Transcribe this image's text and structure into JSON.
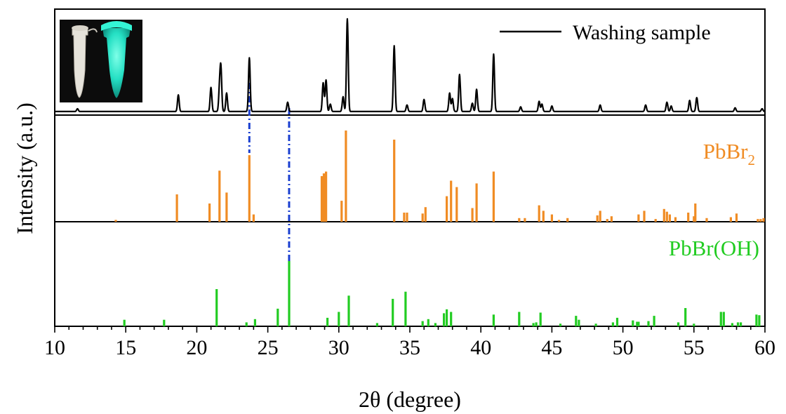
{
  "chart_data": [
    {
      "panel": "top",
      "type": "line",
      "series": [
        {
          "name": "Washing sample",
          "color": "#000000"
        }
      ],
      "peaks": [
        {
          "x": 11.6,
          "y": 3
        },
        {
          "x": 18.7,
          "y": 18
        },
        {
          "x": 21.0,
          "y": 26
        },
        {
          "x": 21.6,
          "y": 24
        },
        {
          "x": 21.7,
          "y": 45
        },
        {
          "x": 22.1,
          "y": 20
        },
        {
          "x": 23.7,
          "y": 58
        },
        {
          "x": 26.4,
          "y": 10
        },
        {
          "x": 28.9,
          "y": 31
        },
        {
          "x": 29.1,
          "y": 34
        },
        {
          "x": 29.4,
          "y": 8
        },
        {
          "x": 30.3,
          "y": 16
        },
        {
          "x": 30.6,
          "y": 100
        },
        {
          "x": 33.9,
          "y": 71
        },
        {
          "x": 34.8,
          "y": 7
        },
        {
          "x": 36.0,
          "y": 13
        },
        {
          "x": 37.8,
          "y": 20
        },
        {
          "x": 38.0,
          "y": 14
        },
        {
          "x": 38.5,
          "y": 40
        },
        {
          "x": 39.4,
          "y": 9
        },
        {
          "x": 39.7,
          "y": 24
        },
        {
          "x": 40.9,
          "y": 62
        },
        {
          "x": 42.8,
          "y": 5
        },
        {
          "x": 44.1,
          "y": 11
        },
        {
          "x": 44.3,
          "y": 8
        },
        {
          "x": 45.0,
          "y": 6
        },
        {
          "x": 48.4,
          "y": 7
        },
        {
          "x": 51.6,
          "y": 7
        },
        {
          "x": 53.1,
          "y": 10
        },
        {
          "x": 53.4,
          "y": 6
        },
        {
          "x": 54.7,
          "y": 12
        },
        {
          "x": 55.2,
          "y": 15
        },
        {
          "x": 57.9,
          "y": 4
        },
        {
          "x": 59.8,
          "y": 3
        }
      ]
    },
    {
      "panel": "middle",
      "type": "bar",
      "series": [
        {
          "name": "PbBr2",
          "color": "#f08c24"
        }
      ],
      "peaks": [
        {
          "x": 14.3,
          "y": 2
        },
        {
          "x": 18.6,
          "y": 30
        },
        {
          "x": 20.9,
          "y": 20
        },
        {
          "x": 21.6,
          "y": 56
        },
        {
          "x": 22.1,
          "y": 32
        },
        {
          "x": 23.7,
          "y": 73
        },
        {
          "x": 24.0,
          "y": 8
        },
        {
          "x": 28.8,
          "y": 50
        },
        {
          "x": 28.95,
          "y": 53
        },
        {
          "x": 29.1,
          "y": 55
        },
        {
          "x": 30.2,
          "y": 23
        },
        {
          "x": 30.5,
          "y": 100
        },
        {
          "x": 33.9,
          "y": 90
        },
        {
          "x": 34.6,
          "y": 10
        },
        {
          "x": 34.8,
          "y": 10
        },
        {
          "x": 35.9,
          "y": 9
        },
        {
          "x": 36.1,
          "y": 16
        },
        {
          "x": 37.6,
          "y": 28
        },
        {
          "x": 37.9,
          "y": 45
        },
        {
          "x": 38.3,
          "y": 38
        },
        {
          "x": 39.4,
          "y": 15
        },
        {
          "x": 39.7,
          "y": 42
        },
        {
          "x": 40.9,
          "y": 55
        },
        {
          "x": 42.7,
          "y": 4
        },
        {
          "x": 43.1,
          "y": 4
        },
        {
          "x": 44.1,
          "y": 18
        },
        {
          "x": 44.4,
          "y": 12
        },
        {
          "x": 45.0,
          "y": 8
        },
        {
          "x": 45.5,
          "y": 2
        },
        {
          "x": 46.1,
          "y": 4
        },
        {
          "x": 48.2,
          "y": 7
        },
        {
          "x": 48.4,
          "y": 12
        },
        {
          "x": 48.9,
          "y": 3
        },
        {
          "x": 49.2,
          "y": 6
        },
        {
          "x": 51.1,
          "y": 8
        },
        {
          "x": 51.5,
          "y": 12
        },
        {
          "x": 52.3,
          "y": 3
        },
        {
          "x": 52.9,
          "y": 14
        },
        {
          "x": 53.1,
          "y": 11
        },
        {
          "x": 53.3,
          "y": 8
        },
        {
          "x": 53.7,
          "y": 5
        },
        {
          "x": 54.6,
          "y": 10
        },
        {
          "x": 55.0,
          "y": 6
        },
        {
          "x": 55.1,
          "y": 20
        },
        {
          "x": 55.9,
          "y": 4
        },
        {
          "x": 57.6,
          "y": 5
        },
        {
          "x": 58.0,
          "y": 9
        },
        {
          "x": 59.5,
          "y": 3
        },
        {
          "x": 59.7,
          "y": 3
        },
        {
          "x": 59.9,
          "y": 4
        }
      ]
    },
    {
      "panel": "bottom",
      "type": "bar",
      "series": [
        {
          "name": "PbBr(OH)",
          "color": "#22cc22"
        }
      ],
      "peaks": [
        {
          "x": 14.9,
          "y": 10
        },
        {
          "x": 17.7,
          "y": 10
        },
        {
          "x": 21.4,
          "y": 57
        },
        {
          "x": 23.5,
          "y": 6
        },
        {
          "x": 24.1,
          "y": 11
        },
        {
          "x": 25.7,
          "y": 27
        },
        {
          "x": 26.5,
          "y": 100
        },
        {
          "x": 29.2,
          "y": 13
        },
        {
          "x": 30.0,
          "y": 22
        },
        {
          "x": 30.7,
          "y": 47
        },
        {
          "x": 32.7,
          "y": 5
        },
        {
          "x": 33.8,
          "y": 42
        },
        {
          "x": 34.7,
          "y": 53
        },
        {
          "x": 35.9,
          "y": 8
        },
        {
          "x": 36.3,
          "y": 11
        },
        {
          "x": 36.8,
          "y": 5
        },
        {
          "x": 37.4,
          "y": 20
        },
        {
          "x": 37.6,
          "y": 26
        },
        {
          "x": 37.9,
          "y": 22
        },
        {
          "x": 40.9,
          "y": 18
        },
        {
          "x": 42.7,
          "y": 22
        },
        {
          "x": 43.7,
          "y": 5
        },
        {
          "x": 43.9,
          "y": 6
        },
        {
          "x": 44.2,
          "y": 21
        },
        {
          "x": 45.6,
          "y": 4
        },
        {
          "x": 46.7,
          "y": 16
        },
        {
          "x": 46.9,
          "y": 10
        },
        {
          "x": 48.1,
          "y": 4
        },
        {
          "x": 49.3,
          "y": 6
        },
        {
          "x": 49.6,
          "y": 13
        },
        {
          "x": 50.7,
          "y": 9
        },
        {
          "x": 51.0,
          "y": 7
        },
        {
          "x": 51.1,
          "y": 7
        },
        {
          "x": 51.8,
          "y": 8
        },
        {
          "x": 52.2,
          "y": 16
        },
        {
          "x": 53.9,
          "y": 6
        },
        {
          "x": 54.4,
          "y": 28
        },
        {
          "x": 55.0,
          "y": 4
        },
        {
          "x": 56.9,
          "y": 22
        },
        {
          "x": 57.1,
          "y": 22
        },
        {
          "x": 57.7,
          "y": 5
        },
        {
          "x": 58.1,
          "y": 6
        },
        {
          "x": 58.3,
          "y": 6
        },
        {
          "x": 59.4,
          "y": 18
        },
        {
          "x": 59.6,
          "y": 17
        }
      ]
    }
  ],
  "axes": {
    "xlabel": "2θ (degree)",
    "ylabel": "Intensity (a.u.)",
    "xlim": [
      10,
      60
    ],
    "xticks": [
      "10",
      "15",
      "20",
      "25",
      "30",
      "35",
      "40",
      "45",
      "50",
      "55",
      "60"
    ]
  },
  "labels": {
    "legend": "Washing sample",
    "pbbr2_base": "PbBr",
    "pbbr2_sub": "2",
    "pbbroh": "PbBr(OH)"
  },
  "guides": [
    {
      "x": 23.7,
      "color": "#1a3fd0"
    },
    {
      "x": 26.5,
      "color": "#1a3fd0"
    }
  ],
  "inset": {
    "description": "photo of two sample vials: left under daylight (white), right under UV (cyan glow)",
    "glow_color": "#25f0d0"
  }
}
